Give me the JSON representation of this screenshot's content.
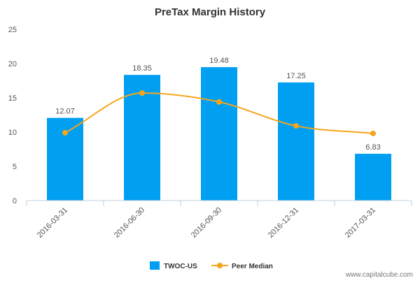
{
  "chart_data": {
    "type": "bar",
    "title": "PreTax Margin History",
    "categories": [
      "2016-03-31",
      "2016-06-30",
      "2016-09-30",
      "2016-12-31",
      "2017-03-31"
    ],
    "series": [
      {
        "name": "TWOC-US",
        "type": "bar",
        "color": "#019ff1",
        "values": [
          12.07,
          18.35,
          19.48,
          17.25,
          6.83
        ],
        "data_labels": [
          "12.07",
          "18.35",
          "19.48",
          "17.25",
          "6.83"
        ]
      },
      {
        "name": "Peer Median",
        "type": "line",
        "color": "#f5a51c",
        "values": [
          9.9,
          15.7,
          14.4,
          10.9,
          9.8
        ]
      }
    ],
    "ylim": [
      0,
      25
    ],
    "yticks": [
      0,
      5,
      10,
      15,
      20,
      25
    ],
    "xlabel": "",
    "ylabel": "",
    "grid": false,
    "legend_position": "bottom-center"
  },
  "watermark": "www.capitalcube.com"
}
